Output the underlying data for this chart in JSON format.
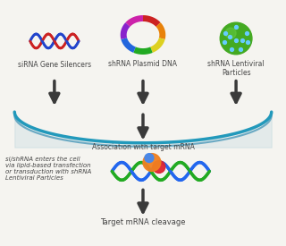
{
  "bg_color": "#f5f4f0",
  "labels": {
    "sirna": "siRNA Gene Silencers",
    "shrna_plasmid": "shRNA Plasmid DNA",
    "shrna_lentiviral": "shRNA Lentiviral\nParticles",
    "association": "Association with target mRNA",
    "cell_entry": "si/shRNA enters the cell\nvia lipid-based transfection\nor transduction with shRNA\nLentiviral Particles",
    "cleavage": "Target mRNA cleavage"
  },
  "arrow_color": "#3a3a3a",
  "arc_color": "#1a7faa",
  "arc_color2": "#2299bb",
  "helix_red": "#cc2222",
  "helix_blue": "#2244cc",
  "plasmid_colors": [
    "#cc2222",
    "#e8820a",
    "#ddd020",
    "#22aa22",
    "#2266dd",
    "#8822cc",
    "#cc22aa"
  ],
  "virus_green": "#44aa22",
  "virus_dot": "#66ccff",
  "mrna_green": "#22aa22",
  "mrna_blue": "#2266ee",
  "risc_orange": "#f08020",
  "risc_red": "#dd2233",
  "risc_blue": "#4488ee",
  "label_fontsize": 5.5,
  "label_color": "#444444",
  "side_fontsize": 5.0
}
